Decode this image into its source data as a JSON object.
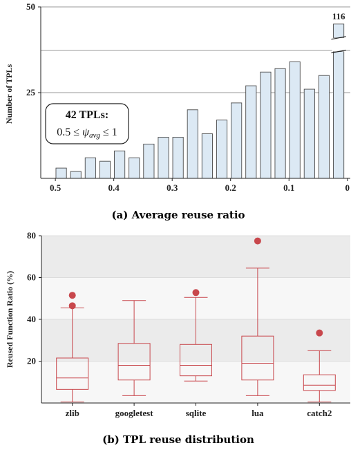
{
  "chart_data": [
    {
      "type": "bar",
      "caption": "(a) Average reuse ratio",
      "ylabel": "Number of TPLs",
      "yticks": [
        25,
        50
      ],
      "xticks": [
        "0.5",
        "0.4",
        "0.3",
        "0.2",
        "0.1",
        "0"
      ],
      "x_range": [
        0.525,
        -0.005
      ],
      "ylim": [
        0,
        50
      ],
      "axis_break": true,
      "x": [
        0.49,
        0.465,
        0.44,
        0.415,
        0.39,
        0.365,
        0.34,
        0.315,
        0.29,
        0.265,
        0.24,
        0.215,
        0.19,
        0.165,
        0.14,
        0.115,
        0.09,
        0.065,
        0.04,
        0.015
      ],
      "values": [
        3,
        2,
        6,
        5,
        8,
        6,
        10,
        12,
        12,
        20,
        13,
        17,
        22,
        27,
        31,
        32,
        34,
        26,
        30,
        116
      ],
      "top_label": "116",
      "annotation": {
        "line1": "42 TPLs:",
        "line2": "0.5 ≤ ψavg ≤ 1"
      },
      "colors": {
        "bar_fill": "#dce9f4",
        "bar_stroke": "#4a4a4a"
      }
    },
    {
      "type": "box",
      "caption": "(b) TPL reuse distribution",
      "ylabel": "Reused Function Ratio (%)",
      "yticks": [
        20,
        40,
        60,
        80
      ],
      "ylim": [
        0,
        80
      ],
      "categories": [
        "zlib",
        "googletest",
        "sqlite",
        "lua",
        "catch2"
      ],
      "boxes": [
        {
          "whislo": 0.5,
          "q1": 6.5,
          "med": 12,
          "q3": 21.5,
          "whishi": 45.5,
          "fliers": [
            46.5,
            51.5
          ]
        },
        {
          "whislo": 3.5,
          "q1": 11,
          "med": 18,
          "q3": 28.5,
          "whishi": 49,
          "fliers": []
        },
        {
          "whislo": 10.5,
          "q1": 13,
          "med": 18,
          "q3": 28,
          "whishi": 50.5,
          "fliers": [
            52.8
          ]
        },
        {
          "whislo": 3.5,
          "q1": 11,
          "med": 19,
          "q3": 32,
          "whishi": 64.5,
          "fliers": [
            77.5
          ]
        },
        {
          "whislo": 0.5,
          "q1": 6,
          "med": 8.5,
          "q3": 13.5,
          "whishi": 25,
          "fliers": [
            33.5
          ]
        }
      ],
      "colors": {
        "box_stroke": "#c8474c",
        "flier": "#c8474c",
        "band_dark": "#ebebeb",
        "band_light": "#f7f7f7"
      }
    }
  ]
}
